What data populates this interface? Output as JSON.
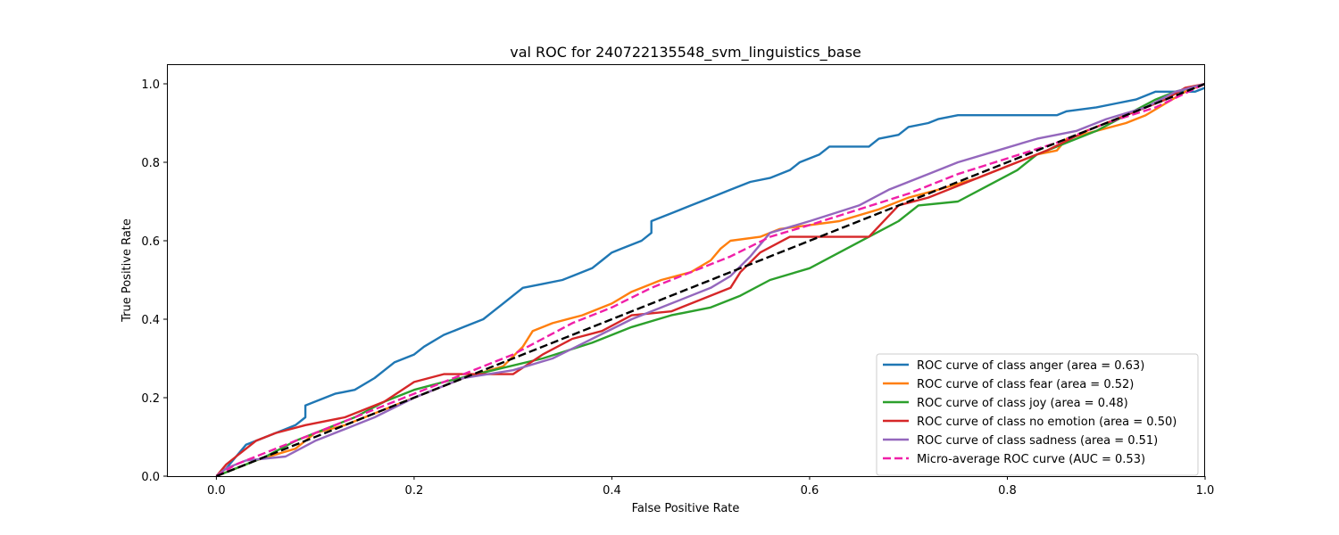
{
  "chart_data": {
    "type": "line",
    "title": "val ROC for 240722135548_svm_linguistics_base",
    "xlabel": "False Positive Rate",
    "ylabel": "True Positive Rate",
    "xlim": [
      -0.05,
      1.0
    ],
    "ylim": [
      0.0,
      1.05
    ],
    "xticks": [
      0.0,
      0.2,
      0.4,
      0.6,
      0.8,
      1.0
    ],
    "yticks": [
      0.0,
      0.2,
      0.4,
      0.6,
      0.8,
      1.0
    ],
    "xtick_labels": [
      "0.0",
      "0.2",
      "0.4",
      "0.6",
      "0.8",
      "1.0"
    ],
    "ytick_labels": [
      "0.0",
      "0.2",
      "0.4",
      "0.6",
      "0.8",
      "1.0"
    ],
    "grid": false,
    "legend_position": "lower-right",
    "series": [
      {
        "name": "ROC curve of class anger (area = 0.63)",
        "color": "#1f77b4",
        "dash": false,
        "points": [
          [
            0.0,
            0.0
          ],
          [
            0.005,
            0.01
          ],
          [
            0.01,
            0.02
          ],
          [
            0.02,
            0.05
          ],
          [
            0.03,
            0.08
          ],
          [
            0.05,
            0.1
          ],
          [
            0.07,
            0.12
          ],
          [
            0.08,
            0.13
          ],
          [
            0.09,
            0.15
          ],
          [
            0.09,
            0.18
          ],
          [
            0.1,
            0.19
          ],
          [
            0.11,
            0.2
          ],
          [
            0.12,
            0.21
          ],
          [
            0.14,
            0.22
          ],
          [
            0.16,
            0.25
          ],
          [
            0.17,
            0.27
          ],
          [
            0.18,
            0.29
          ],
          [
            0.2,
            0.31
          ],
          [
            0.21,
            0.33
          ],
          [
            0.23,
            0.36
          ],
          [
            0.25,
            0.38
          ],
          [
            0.27,
            0.4
          ],
          [
            0.28,
            0.42
          ],
          [
            0.29,
            0.44
          ],
          [
            0.3,
            0.46
          ],
          [
            0.31,
            0.48
          ],
          [
            0.33,
            0.49
          ],
          [
            0.35,
            0.5
          ],
          [
            0.36,
            0.51
          ],
          [
            0.38,
            0.53
          ],
          [
            0.39,
            0.55
          ],
          [
            0.4,
            0.57
          ],
          [
            0.41,
            0.58
          ],
          [
            0.42,
            0.59
          ],
          [
            0.43,
            0.6
          ],
          [
            0.44,
            0.62
          ],
          [
            0.44,
            0.65
          ],
          [
            0.46,
            0.67
          ],
          [
            0.48,
            0.69
          ],
          [
            0.5,
            0.71
          ],
          [
            0.52,
            0.73
          ],
          [
            0.54,
            0.75
          ],
          [
            0.56,
            0.76
          ],
          [
            0.58,
            0.78
          ],
          [
            0.59,
            0.8
          ],
          [
            0.61,
            0.82
          ],
          [
            0.62,
            0.84
          ],
          [
            0.66,
            0.84
          ],
          [
            0.67,
            0.86
          ],
          [
            0.69,
            0.87
          ],
          [
            0.7,
            0.89
          ],
          [
            0.72,
            0.9
          ],
          [
            0.73,
            0.91
          ],
          [
            0.75,
            0.92
          ],
          [
            0.85,
            0.92
          ],
          [
            0.86,
            0.93
          ],
          [
            0.89,
            0.94
          ],
          [
            0.91,
            0.95
          ],
          [
            0.93,
            0.96
          ],
          [
            0.95,
            0.98
          ],
          [
            0.99,
            0.98
          ],
          [
            1.0,
            0.99
          ]
        ]
      },
      {
        "name": "ROC curve of class fear (area = 0.52)",
        "color": "#ff7f0e",
        "dash": false,
        "points": [
          [
            0.0,
            0.0
          ],
          [
            0.02,
            0.02
          ],
          [
            0.04,
            0.04
          ],
          [
            0.08,
            0.07
          ],
          [
            0.1,
            0.11
          ],
          [
            0.13,
            0.13
          ],
          [
            0.16,
            0.16
          ],
          [
            0.2,
            0.2
          ],
          [
            0.25,
            0.25
          ],
          [
            0.29,
            0.28
          ],
          [
            0.31,
            0.33
          ],
          [
            0.32,
            0.37
          ],
          [
            0.34,
            0.39
          ],
          [
            0.37,
            0.41
          ],
          [
            0.4,
            0.44
          ],
          [
            0.42,
            0.47
          ],
          [
            0.45,
            0.5
          ],
          [
            0.48,
            0.52
          ],
          [
            0.5,
            0.55
          ],
          [
            0.51,
            0.58
          ],
          [
            0.52,
            0.6
          ],
          [
            0.55,
            0.61
          ],
          [
            0.57,
            0.63
          ],
          [
            0.6,
            0.64
          ],
          [
            0.63,
            0.65
          ],
          [
            0.67,
            0.68
          ],
          [
            0.7,
            0.71
          ],
          [
            0.73,
            0.73
          ],
          [
            0.77,
            0.76
          ],
          [
            0.8,
            0.79
          ],
          [
            0.83,
            0.82
          ],
          [
            0.85,
            0.83
          ],
          [
            0.86,
            0.86
          ],
          [
            0.89,
            0.88
          ],
          [
            0.92,
            0.9
          ],
          [
            0.94,
            0.92
          ],
          [
            0.96,
            0.95
          ],
          [
            0.98,
            0.98
          ],
          [
            1.0,
            1.0
          ]
        ]
      },
      {
        "name": "ROC curve of class joy (area = 0.48)",
        "color": "#2ca02c",
        "dash": false,
        "points": [
          [
            0.0,
            0.0
          ],
          [
            0.02,
            0.02
          ],
          [
            0.05,
            0.05
          ],
          [
            0.08,
            0.09
          ],
          [
            0.11,
            0.12
          ],
          [
            0.14,
            0.15
          ],
          [
            0.17,
            0.19
          ],
          [
            0.2,
            0.22
          ],
          [
            0.23,
            0.24
          ],
          [
            0.28,
            0.27
          ],
          [
            0.33,
            0.3
          ],
          [
            0.38,
            0.34
          ],
          [
            0.42,
            0.38
          ],
          [
            0.46,
            0.41
          ],
          [
            0.5,
            0.43
          ],
          [
            0.53,
            0.46
          ],
          [
            0.56,
            0.5
          ],
          [
            0.6,
            0.53
          ],
          [
            0.63,
            0.57
          ],
          [
            0.66,
            0.61
          ],
          [
            0.69,
            0.65
          ],
          [
            0.71,
            0.69
          ],
          [
            0.75,
            0.7
          ],
          [
            0.78,
            0.74
          ],
          [
            0.81,
            0.78
          ],
          [
            0.83,
            0.82
          ],
          [
            0.86,
            0.85
          ],
          [
            0.89,
            0.88
          ],
          [
            0.92,
            0.92
          ],
          [
            0.95,
            0.96
          ],
          [
            0.97,
            0.98
          ],
          [
            1.0,
            1.0
          ]
        ]
      },
      {
        "name": "ROC curve of class no emotion (area = 0.50)",
        "color": "#d62728",
        "dash": false,
        "points": [
          [
            0.0,
            0.0
          ],
          [
            0.01,
            0.03
          ],
          [
            0.02,
            0.05
          ],
          [
            0.04,
            0.09
          ],
          [
            0.06,
            0.11
          ],
          [
            0.09,
            0.13
          ],
          [
            0.13,
            0.15
          ],
          [
            0.17,
            0.19
          ],
          [
            0.2,
            0.24
          ],
          [
            0.23,
            0.26
          ],
          [
            0.3,
            0.26
          ],
          [
            0.33,
            0.31
          ],
          [
            0.36,
            0.35
          ],
          [
            0.39,
            0.37
          ],
          [
            0.42,
            0.41
          ],
          [
            0.46,
            0.42
          ],
          [
            0.49,
            0.45
          ],
          [
            0.52,
            0.48
          ],
          [
            0.53,
            0.52
          ],
          [
            0.55,
            0.57
          ],
          [
            0.58,
            0.61
          ],
          [
            0.66,
            0.61
          ],
          [
            0.69,
            0.69
          ],
          [
            0.72,
            0.71
          ],
          [
            0.76,
            0.75
          ],
          [
            0.8,
            0.79
          ],
          [
            0.84,
            0.83
          ],
          [
            0.88,
            0.88
          ],
          [
            0.92,
            0.92
          ],
          [
            0.96,
            0.96
          ],
          [
            0.98,
            0.99
          ],
          [
            1.0,
            1.0
          ]
        ]
      },
      {
        "name": "ROC curve of class sadness (area = 0.51)",
        "color": "#9467bd",
        "dash": false,
        "points": [
          [
            0.0,
            0.0
          ],
          [
            0.01,
            0.02
          ],
          [
            0.03,
            0.04
          ],
          [
            0.07,
            0.05
          ],
          [
            0.1,
            0.09
          ],
          [
            0.13,
            0.12
          ],
          [
            0.16,
            0.15
          ],
          [
            0.2,
            0.2
          ],
          [
            0.25,
            0.25
          ],
          [
            0.3,
            0.27
          ],
          [
            0.34,
            0.3
          ],
          [
            0.38,
            0.35
          ],
          [
            0.42,
            0.4
          ],
          [
            0.46,
            0.44
          ],
          [
            0.5,
            0.48
          ],
          [
            0.52,
            0.51
          ],
          [
            0.54,
            0.56
          ],
          [
            0.56,
            0.62
          ],
          [
            0.6,
            0.65
          ],
          [
            0.65,
            0.69
          ],
          [
            0.68,
            0.73
          ],
          [
            0.72,
            0.77
          ],
          [
            0.75,
            0.8
          ],
          [
            0.79,
            0.83
          ],
          [
            0.83,
            0.86
          ],
          [
            0.87,
            0.88
          ],
          [
            0.9,
            0.91
          ],
          [
            0.94,
            0.94
          ],
          [
            0.97,
            0.98
          ],
          [
            1.0,
            1.0
          ]
        ]
      },
      {
        "name": "Micro-average ROC curve (AUC = 0.53)",
        "color": "#f01fa8",
        "dash": true,
        "points": [
          [
            0.0,
            0.0
          ],
          [
            0.02,
            0.03
          ],
          [
            0.05,
            0.06
          ],
          [
            0.1,
            0.11
          ],
          [
            0.15,
            0.16
          ],
          [
            0.2,
            0.21
          ],
          [
            0.25,
            0.26
          ],
          [
            0.3,
            0.31
          ],
          [
            0.33,
            0.35
          ],
          [
            0.36,
            0.39
          ],
          [
            0.4,
            0.43
          ],
          [
            0.44,
            0.48
          ],
          [
            0.48,
            0.52
          ],
          [
            0.52,
            0.56
          ],
          [
            0.56,
            0.61
          ],
          [
            0.6,
            0.64
          ],
          [
            0.65,
            0.68
          ],
          [
            0.7,
            0.72
          ],
          [
            0.75,
            0.77
          ],
          [
            0.8,
            0.81
          ],
          [
            0.85,
            0.85
          ],
          [
            0.9,
            0.9
          ],
          [
            0.95,
            0.94
          ],
          [
            1.0,
            1.0
          ]
        ]
      },
      {
        "name": "",
        "color": "#000000",
        "dash": true,
        "points": [
          [
            0.0,
            0.0
          ],
          [
            1.0,
            1.0
          ]
        ]
      }
    ]
  }
}
